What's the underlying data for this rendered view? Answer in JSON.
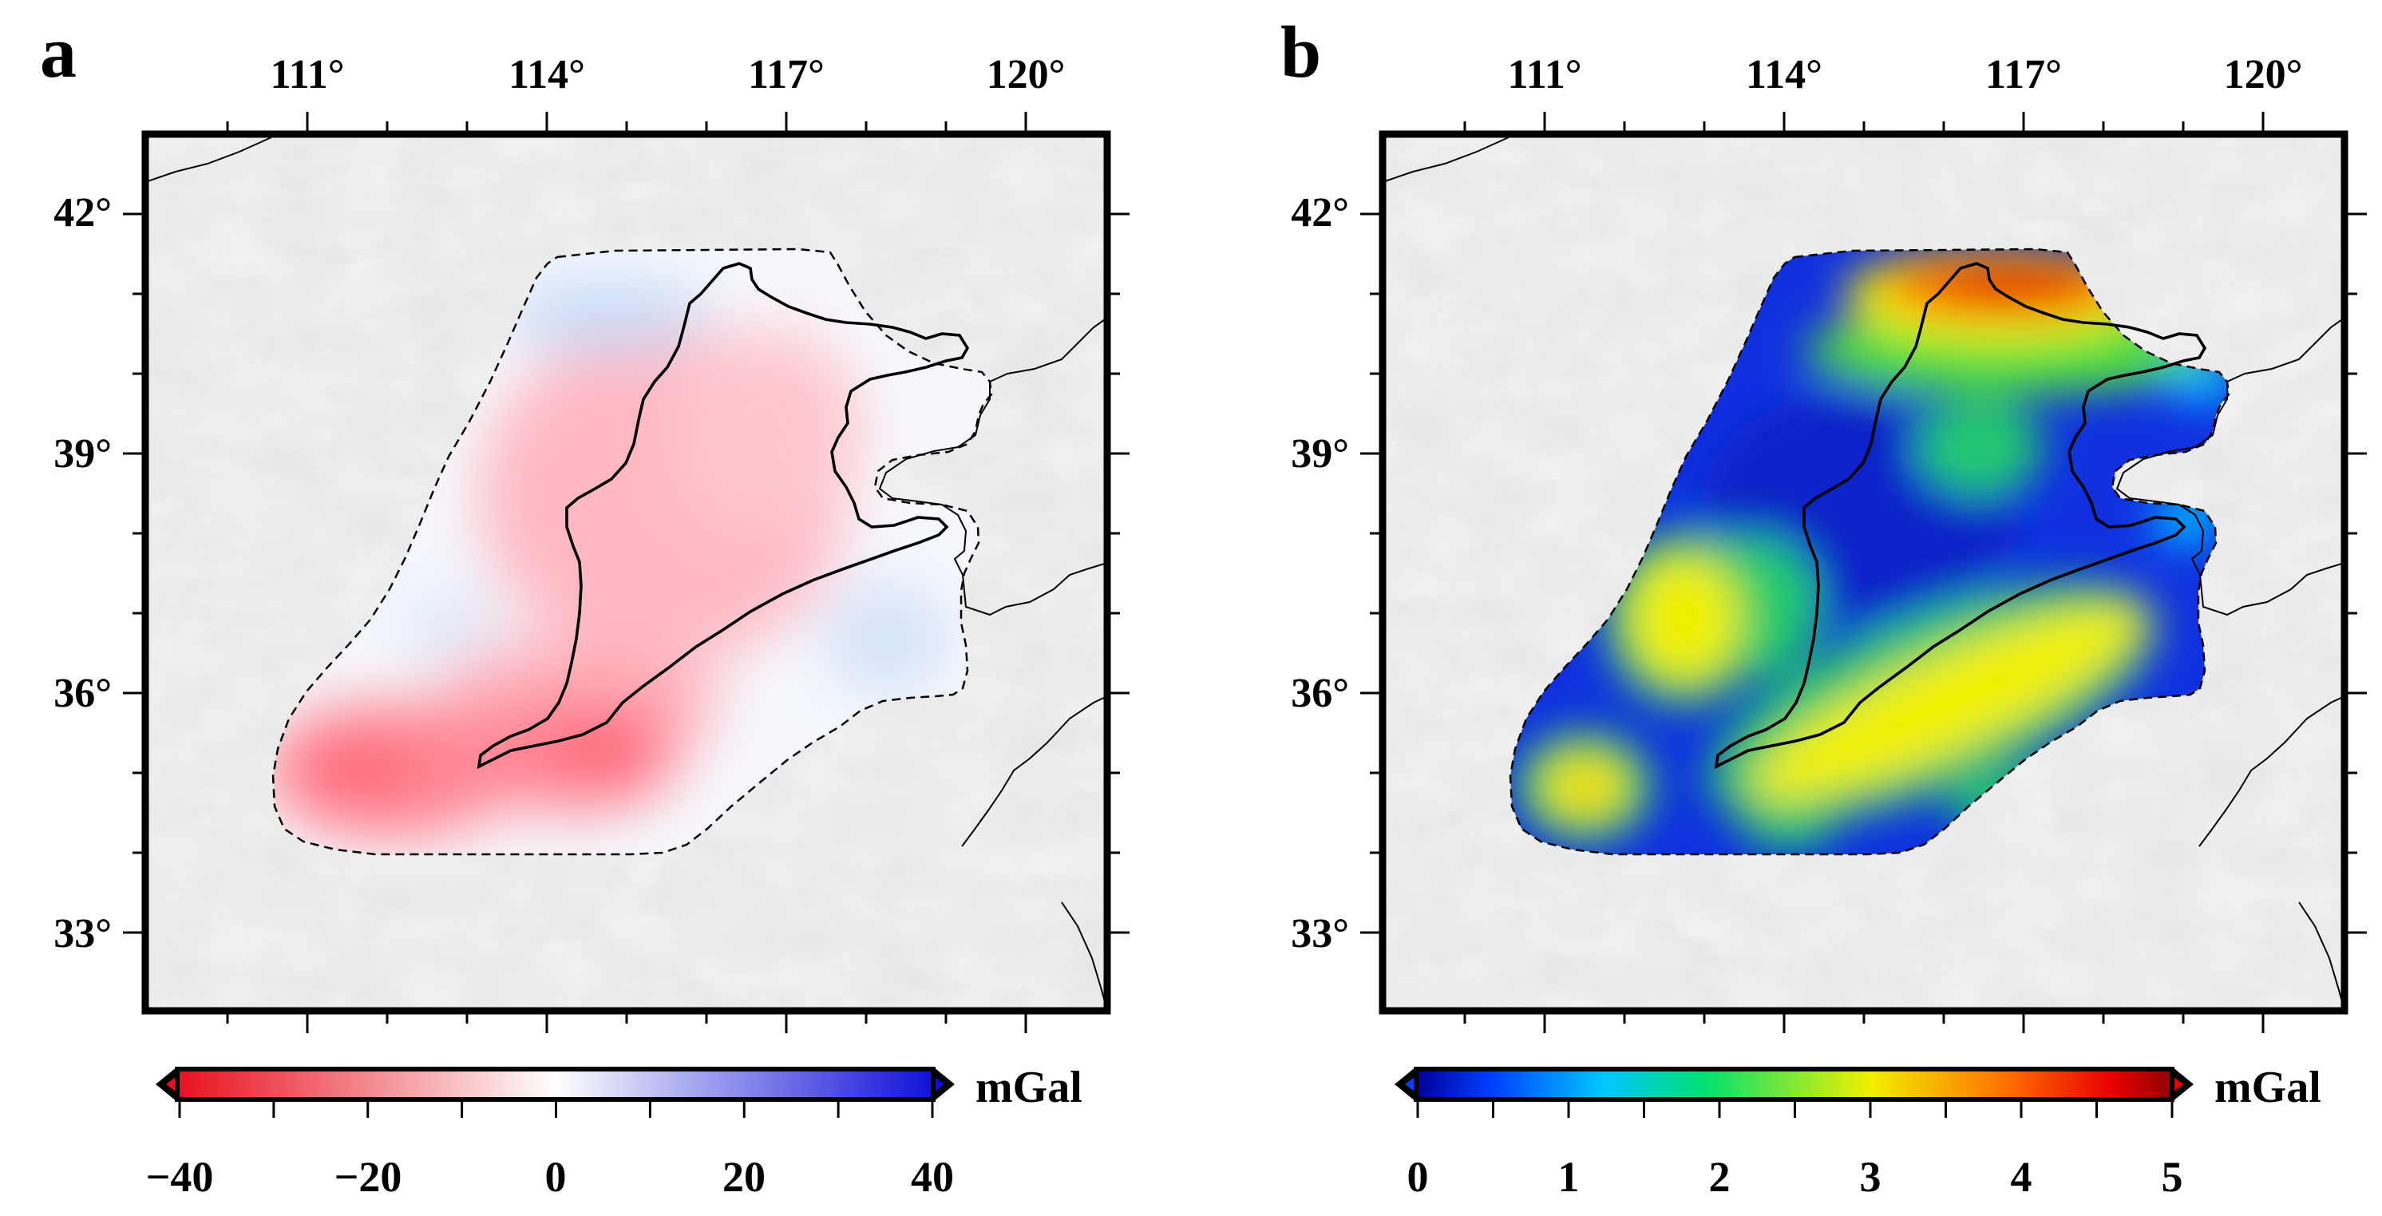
{
  "map_a": {
    "letter": "a",
    "lon_ticks": [
      "111°",
      "114°",
      "117°",
      "120°"
    ],
    "lat_ticks": [
      "42°",
      "39°",
      "36°",
      "33°"
    ],
    "extent": {
      "lon": [
        109,
        121
      ],
      "lat": [
        32,
        43
      ]
    },
    "colorbar": {
      "labels": [
        "−40",
        "−20",
        "0",
        "20",
        "40"
      ],
      "range": [
        -40,
        40
      ],
      "unit": "mGal",
      "colors": [
        "#e8101e",
        "#ffffff",
        "#1010d8"
      ]
    }
  },
  "map_b": {
    "letter": "b",
    "lon_ticks": [
      "111°",
      "114°",
      "117°",
      "120°"
    ],
    "lat_ticks": [
      "42°",
      "39°",
      "36°",
      "33°"
    ],
    "extent": {
      "lon": [
        109,
        121
      ],
      "lat": [
        32,
        43
      ]
    },
    "colorbar": {
      "labels": [
        "0",
        "1",
        "2",
        "3",
        "4",
        "5"
      ],
      "range": [
        0,
        5
      ],
      "unit": "mGal",
      "colors": [
        "#00009a",
        "#0040ff",
        "#00c8ff",
        "#00e070",
        "#f0f000",
        "#ff7000",
        "#e80000",
        "#900000"
      ]
    }
  }
}
